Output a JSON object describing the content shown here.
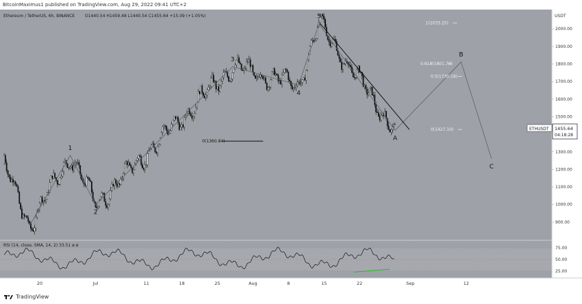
{
  "header": {
    "published_by": "BitcoinMaximus1 published on TradingView.com, Aug 29, 2022 09:41 UTC+2"
  },
  "legend": {
    "title": "Ethereum / TetherUS, 6h, BINANCE",
    "ohlc": "O1440.54  H1459.48  L1440.54  C1455.64  +15.09 (+1.05%)"
  },
  "price_axis": {
    "currency": "USDT",
    "ticks": [
      "2000.00",
      "1900.00",
      "1800.00",
      "1700.00",
      "1600.00",
      "1500.00",
      "1400.00",
      "1300.00",
      "1200.00",
      "1100.00",
      "1000.00",
      "900.00"
    ]
  },
  "date_axis": {
    "ticks": [
      "20",
      "Jul",
      "11",
      "18",
      "25",
      "Aug",
      "8",
      "15",
      "22",
      "Sep",
      "12"
    ]
  },
  "price_tag": {
    "symbol": "ETHUSDT",
    "price": "1455.64",
    "countdown": "04:18:28",
    "color": "#131722"
  },
  "fib_levels": [
    {
      "label": "1(2033.25)",
      "value": 2033.25
    },
    {
      "label": "0.618(1801.70)",
      "value": 1801.7
    },
    {
      "label": "0.5(1730.18)",
      "value": 1730.18
    },
    {
      "label": "0(1427.10)",
      "value": 1427.1
    },
    {
      "label": "0(1360.84)",
      "value": 1360.84
    }
  ],
  "wave_labels": [
    "1",
    "2",
    "3",
    "4",
    "5",
    "A",
    "B",
    "C"
  ],
  "rsi": {
    "label": "RSI (14, close, SMA, 14, 2)  33.51  ø  ø",
    "ticks": [
      "75.00",
      "50.00",
      "25.00"
    ],
    "band_color": "#9a9ca3",
    "support_color": "#1fbf1f"
  },
  "footer": {
    "brand": "TradingView"
  },
  "colors": {
    "chart_bg": "#9ea1a7",
    "candle": "#111111",
    "wave_line": "#5e6067",
    "trendline": "#111111"
  },
  "chart_data": {
    "type": "candlestick",
    "title": "Ethereum / TetherUS, 6h, BINANCE",
    "ylabel": "USDT",
    "ylim": [
      800,
      2110
    ],
    "x_ticks": [
      "20",
      "Jul",
      "11",
      "18",
      "25",
      "Aug",
      "8",
      "15",
      "22",
      "Sep",
      "12"
    ],
    "waves": [
      {
        "label": "1",
        "date": "Jun 26",
        "price": 1280
      },
      {
        "label": "2",
        "date": "Jul 1",
        "price": 1000
      },
      {
        "label": "3",
        "date": "Jul 28",
        "price": 1785
      },
      {
        "label": "4",
        "date": "Aug 10",
        "price": 1680
      },
      {
        "label": "5",
        "date": "Aug 14",
        "price": 2030
      },
      {
        "label": "A",
        "date": "Aug 29",
        "price": 1422
      },
      {
        "label": "B",
        "date": "Sep 11",
        "price": 1812
      },
      {
        "label": "C",
        "date": "Sep 17",
        "price": 1260
      }
    ],
    "path_points": [
      {
        "date": "Jun 18",
        "price": 880
      },
      {
        "date": "Jun 26",
        "price": 1280
      },
      {
        "date": "Jul 1",
        "price": 1000
      },
      {
        "date": "Jul 28",
        "price": 1785
      },
      {
        "date": "Aug 10",
        "price": 1680
      },
      {
        "date": "Aug 14",
        "price": 2030
      },
      {
        "date": "Aug 29",
        "price": 1422
      },
      {
        "date": "Sep 11",
        "price": 1812
      },
      {
        "date": "Sep 17",
        "price": 1260
      }
    ],
    "rsi_range": [
      10,
      90
    ],
    "rsi_ticks": [
      75,
      50,
      25
    ],
    "last_price": 1455.64
  }
}
